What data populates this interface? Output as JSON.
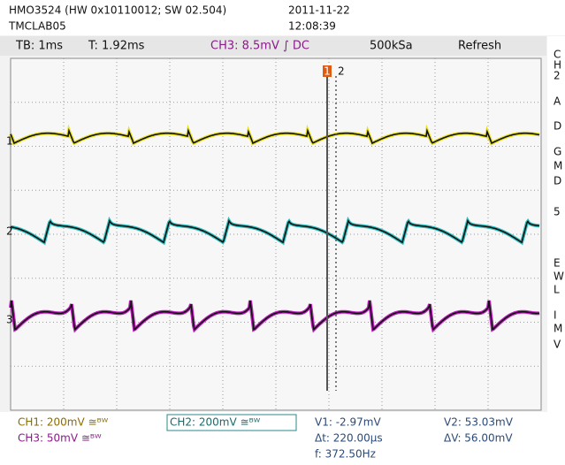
{
  "header": {
    "device": "HMO3524 (HW 0x10110012; SW 02.504)",
    "name": "TMCLAB05",
    "date": "2011-11-22",
    "time": "12:08:39"
  },
  "status": {
    "timebase": "TB: 1ms",
    "trigger_time": "T: 1.92ms",
    "trigger": "CH3: 8.5mV ∫ DC",
    "sample_rate": "500kSa",
    "mode": "Refresh"
  },
  "channels": [
    "1",
    "2",
    "3"
  ],
  "cursors": [
    "1",
    "2"
  ],
  "side_menu": [
    "C",
    "H",
    "2",
    "A",
    "D",
    "G",
    "M",
    "D",
    "5",
    "E",
    "W",
    "L",
    "I",
    "M",
    "V"
  ],
  "footer": {
    "ch1": "CH1: 200mV ≅ᴮᵂ",
    "ch2": "CH2: 200mV ≅ᴮᵂ",
    "ch3": "CH3: 50mV ≅ᴮᵂ",
    "v1": "V1: -2.97mV",
    "v2": "V2: 53.03mV",
    "dt": "Δt: 220.00µs",
    "dv": "ΔV: 56.00mV",
    "f": "f: 372.50Hz"
  }
}
